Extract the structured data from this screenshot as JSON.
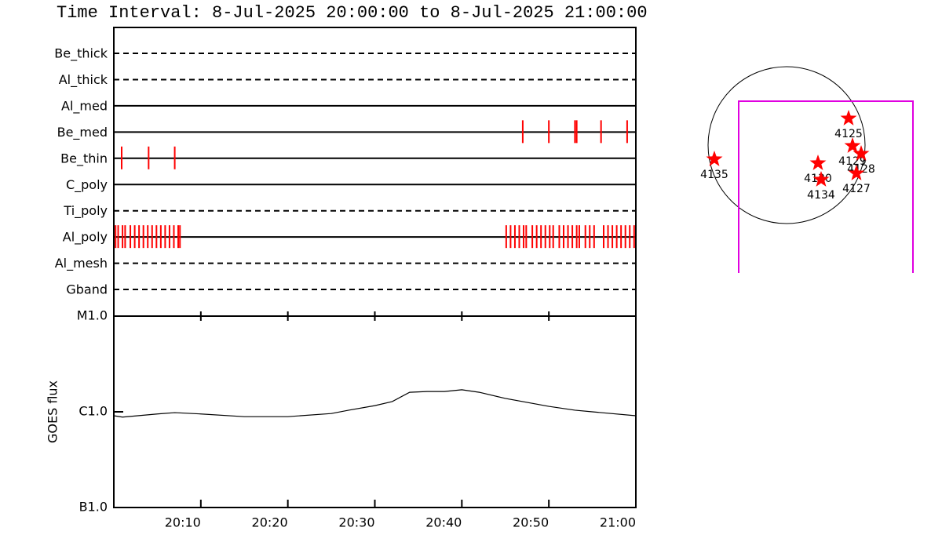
{
  "chart_data": [
    {
      "type": "event",
      "title": "Time Interval:  8-Jul-2025 20:00:00 to  8-Jul-2025 21:00:00",
      "categories": [
        "Be_thick",
        "Al_thick",
        "Al_med",
        "Be_med",
        "Be_thin",
        "C_poly",
        "Ti_poly",
        "Al_poly",
        "Al_mesh",
        "Gband"
      ],
      "line_styles": [
        "dashed",
        "dashed",
        "solid",
        "solid",
        "solid",
        "solid",
        "dashed",
        "solid",
        "dashed",
        "dashed"
      ],
      "events": [
        [],
        [],
        [],
        [
          47.0,
          50.0,
          53.0,
          53.2,
          56.0,
          59.0
        ],
        [
          0.9,
          4.0,
          7.0
        ],
        [],
        [],
        [
          0.2,
          0.5,
          1.0,
          1.3,
          1.9,
          2.4,
          2.9,
          3.4,
          3.9,
          4.4,
          4.9,
          5.4,
          5.9,
          6.4,
          6.9,
          7.4,
          7.6,
          45.1,
          45.6,
          46.1,
          46.6,
          47.1,
          47.4,
          48.1,
          48.6,
          49.1,
          49.6,
          50.1,
          50.5,
          51.2,
          51.7,
          52.2,
          52.7,
          53.2,
          53.5,
          54.2,
          54.7,
          55.2,
          56.3,
          56.8,
          57.3,
          57.8,
          58.3,
          58.8,
          59.3,
          59.8
        ],
        [],
        []
      ],
      "color": "#ff0000",
      "xlim": [
        0,
        60
      ]
    },
    {
      "type": "line",
      "ylabel": "GOES flux",
      "x": [
        0,
        1,
        5,
        7,
        10,
        15,
        20,
        25,
        27,
        30,
        32,
        34,
        36,
        38,
        40,
        42,
        45,
        50,
        53,
        55,
        60
      ],
      "values": [
        9.1e-07,
        8.8e-07,
        9.5e-07,
        9.8e-07,
        9.5e-07,
        8.9e-07,
        8.9e-07,
        9.6e-07,
        1.04e-06,
        1.16e-06,
        1.28e-06,
        1.6e-06,
        1.63e-06,
        1.63e-06,
        1.7e-06,
        1.6e-06,
        1.38e-06,
        1.14e-06,
        1.04e-06,
        1e-06,
        9.1e-07
      ],
      "color": "#000000",
      "xlim": [
        0,
        60
      ],
      "xticks": [
        {
          "value": 10,
          "label": "20:10"
        },
        {
          "value": 20,
          "label": "20:20"
        },
        {
          "value": 30,
          "label": "20:30"
        },
        {
          "value": 40,
          "label": "20:40"
        },
        {
          "value": 50,
          "label": "20:50"
        },
        {
          "value": 60,
          "label": "21:00"
        }
      ],
      "ylim": [
        1e-07,
        1e-05
      ],
      "log_scale": true,
      "yticks": [
        {
          "value": 1e-07,
          "label": "B1.0"
        },
        {
          "value": 1e-06,
          "label": "C1.0"
        },
        {
          "value": 1e-05,
          "label": "M1.0"
        }
      ]
    },
    {
      "type": "scatter",
      "labels": [
        "4125",
        "4129",
        "4128",
        "4127",
        "4130",
        "4134",
        "4135"
      ],
      "x": [
        0.79,
        0.84,
        0.95,
        0.89,
        0.4,
        0.44,
        -0.92
      ],
      "y": [
        0.34,
        -0.01,
        -0.11,
        -0.36,
        -0.23,
        -0.44,
        -0.18
      ],
      "xlim": [
        -1,
        1
      ],
      "ylim": [
        -1,
        1
      ],
      "color": "#ff0000"
    }
  ]
}
